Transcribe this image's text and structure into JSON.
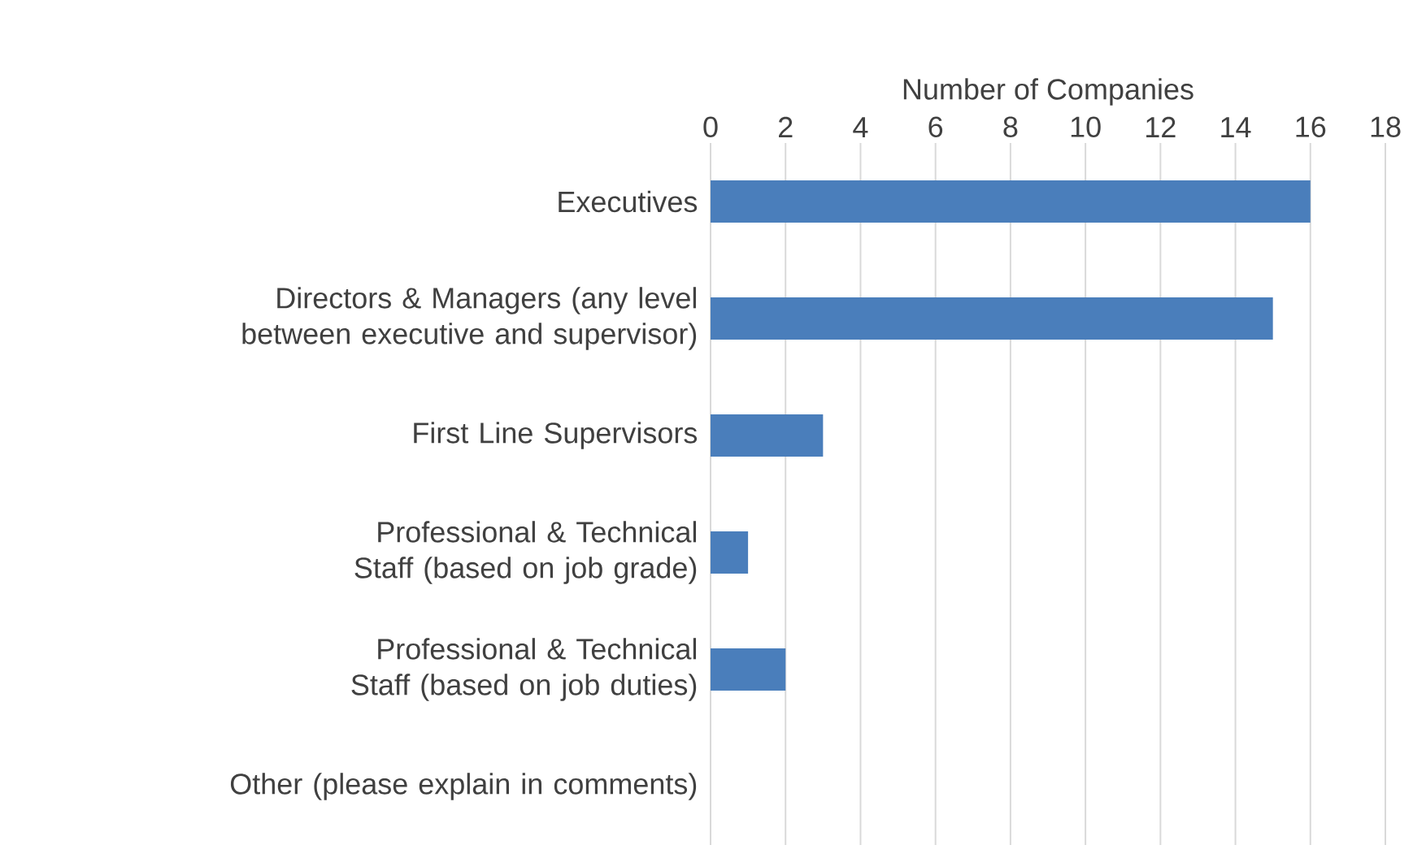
{
  "chart_data": {
    "type": "bar",
    "orientation": "horizontal",
    "xlabel": "Number of Companies",
    "categories": [
      "Executives",
      "Directors & Managers (any level between executive and supervisor)",
      "First Line Supervisors",
      "Professional & Technical Staff (based on job grade)",
      "Professional & Technical Staff (based on job duties)",
      "Other (please explain in comments)"
    ],
    "values": [
      16,
      15,
      3,
      1,
      2,
      0
    ],
    "color": "#4a7ebb",
    "xlim": [
      0,
      18
    ],
    "xticks": [
      0,
      2,
      4,
      6,
      8,
      10,
      12,
      14,
      16,
      18
    ],
    "grid": "x"
  }
}
